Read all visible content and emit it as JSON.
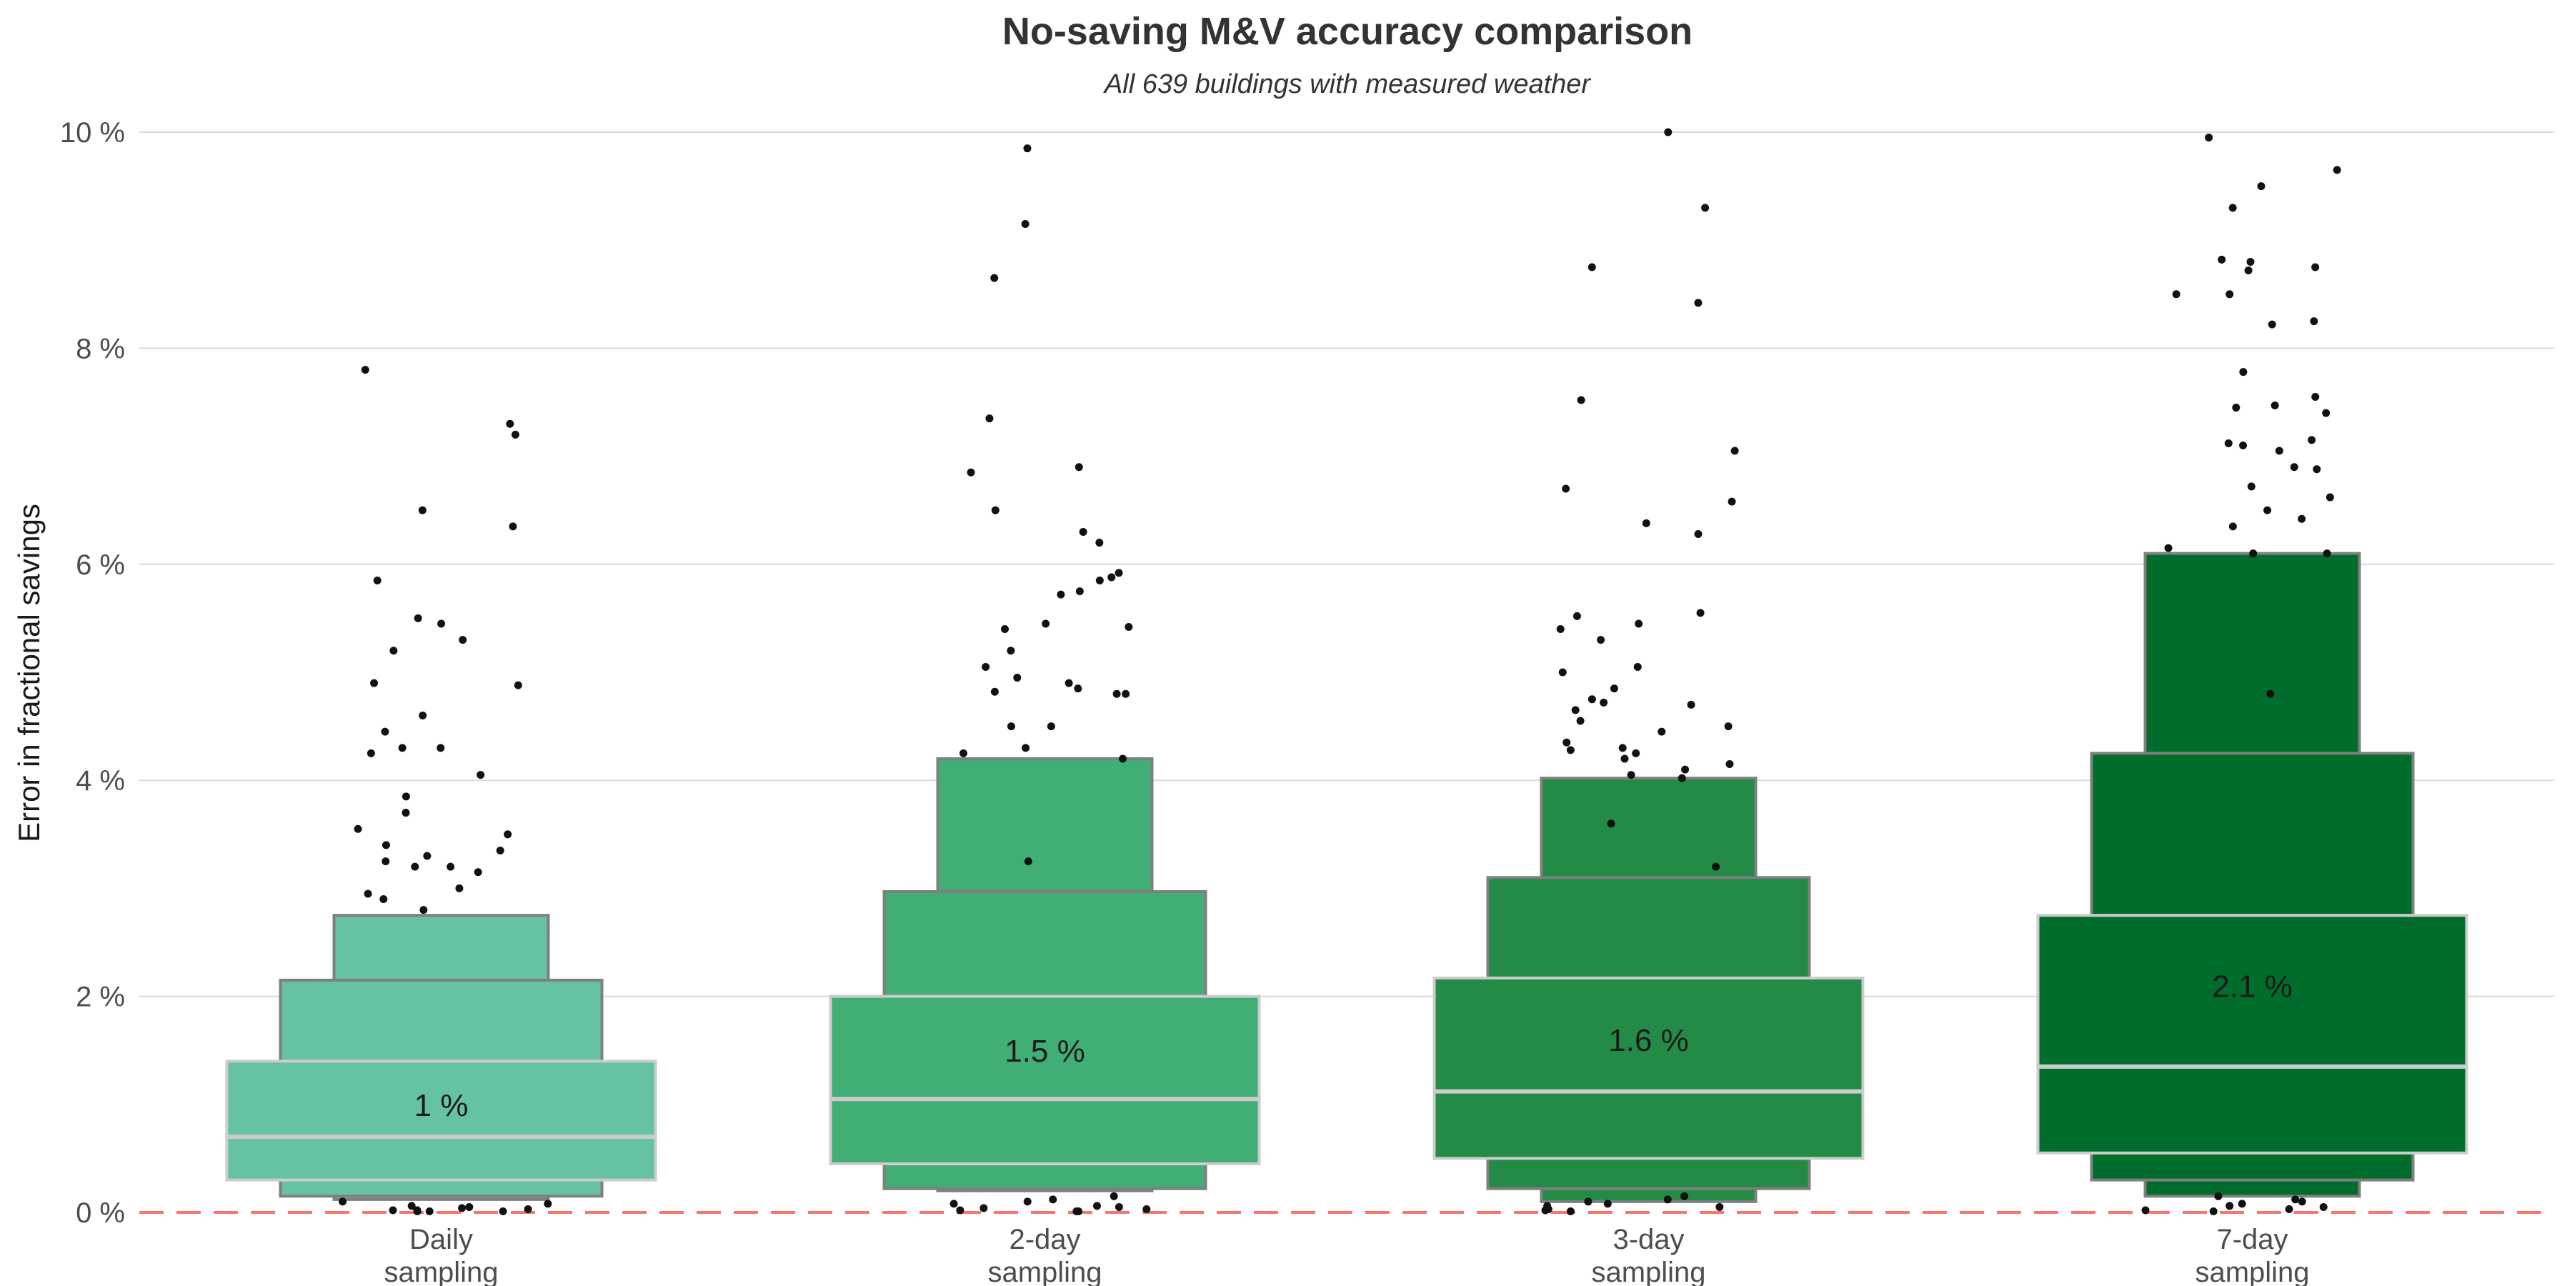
{
  "chart_data": {
    "type": "letter-value boxplot",
    "title": "No-saving M&V accuracy comparison",
    "subtitle": "All 639 buildings with measured weather",
    "xlabel": "",
    "ylabel": "Error in fractional savings",
    "ylim": [
      0,
      10
    ],
    "yticks": [
      0,
      2,
      4,
      6,
      8,
      10
    ],
    "ytick_labels": [
      "0 %",
      "2 %",
      "4 %",
      "6 %",
      "8 %",
      "10 %"
    ],
    "grid": true,
    "reference_line": {
      "y": 0,
      "style": "dashed",
      "color": "#f8766d"
    },
    "categories": [
      {
        "line1": "Daily",
        "line2": "sampling"
      },
      {
        "line1": "2-day",
        "line2": "sampling"
      },
      {
        "line1": "3-day",
        "line2": "sampling"
      },
      {
        "line1": "7-day",
        "line2": "sampling"
      }
    ],
    "colors": [
      "#66c2a4",
      "#41ae76",
      "#238b45",
      "#006d2c"
    ],
    "series": [
      {
        "median": 0.7,
        "mean_label": "1 %",
        "mean": 1.0,
        "letter_values": [
          [
            0.3,
            1.4
          ],
          [
            0.15,
            2.15
          ],
          [
            0.12,
            2.75
          ]
        ],
        "outliers": [
          7.3,
          7.2,
          7.8,
          6.5,
          6.35,
          5.85,
          5.5,
          5.45,
          5.3,
          5.2,
          4.9,
          4.88,
          4.6,
          4.45,
          4.3,
          4.3,
          4.25,
          4.05,
          3.85,
          3.7,
          3.55,
          3.5,
          3.4,
          3.35,
          3.3,
          3.25,
          3.2,
          3.2,
          3.15,
          3.0,
          2.95,
          2.9,
          2.8,
          0.1,
          0.08,
          0.06,
          0.05,
          0.04,
          0.03,
          0.02,
          0.02,
          0.01,
          0.01,
          0.01
        ]
      },
      {
        "median": 1.05,
        "mean_label": "1.5 %",
        "mean": 1.5,
        "letter_values": [
          [
            0.45,
            2.0
          ],
          [
            0.22,
            2.97
          ],
          [
            0.2,
            4.2
          ]
        ],
        "outliers": [
          9.85,
          9.15,
          8.65,
          7.35,
          6.9,
          6.85,
          6.5,
          6.3,
          6.2,
          5.92,
          5.88,
          5.85,
          5.75,
          5.72,
          5.45,
          5.42,
          5.4,
          5.2,
          5.05,
          4.95,
          4.9,
          4.85,
          4.82,
          4.8,
          4.8,
          4.5,
          4.5,
          4.3,
          4.25,
          4.2,
          3.25,
          0.15,
          0.12,
          0.1,
          0.08,
          0.06,
          0.05,
          0.04,
          0.03,
          0.02,
          0.01,
          0.01
        ]
      },
      {
        "median": 1.12,
        "mean_label": "1.6 %",
        "mean": 1.6,
        "letter_values": [
          [
            0.5,
            2.17
          ],
          [
            0.22,
            3.1
          ],
          [
            0.1,
            4.02
          ]
        ],
        "outliers": [
          10.0,
          9.3,
          8.75,
          8.42,
          7.52,
          7.05,
          6.7,
          6.58,
          6.38,
          6.28,
          5.55,
          5.52,
          5.45,
          5.4,
          5.3,
          5.05,
          5.0,
          4.85,
          4.75,
          4.72,
          4.7,
          4.65,
          4.55,
          4.5,
          4.45,
          4.35,
          4.3,
          4.28,
          4.25,
          4.2,
          4.15,
          4.1,
          4.05,
          4.02,
          3.6,
          3.2,
          0.15,
          0.12,
          0.1,
          0.08,
          0.06,
          0.05,
          0.03,
          0.02,
          0.01
        ]
      },
      {
        "median": 1.35,
        "mean_label": "2.1 %",
        "mean": 2.1,
        "letter_values": [
          [
            0.55,
            2.75
          ],
          [
            0.3,
            4.25
          ],
          [
            0.15,
            6.1
          ]
        ],
        "outliers": [
          9.95,
          9.65,
          9.5,
          9.3,
          8.82,
          8.8,
          8.75,
          8.72,
          8.5,
          8.5,
          8.25,
          8.22,
          7.78,
          7.55,
          7.47,
          7.45,
          7.4,
          7.15,
          7.12,
          7.1,
          7.05,
          6.9,
          6.88,
          6.72,
          6.62,
          6.5,
          6.42,
          6.35,
          6.15,
          6.1,
          6.1,
          4.8,
          0.15,
          0.12,
          0.1,
          0.08,
          0.06,
          0.05,
          0.03,
          0.02,
          0.01
        ]
      }
    ]
  }
}
